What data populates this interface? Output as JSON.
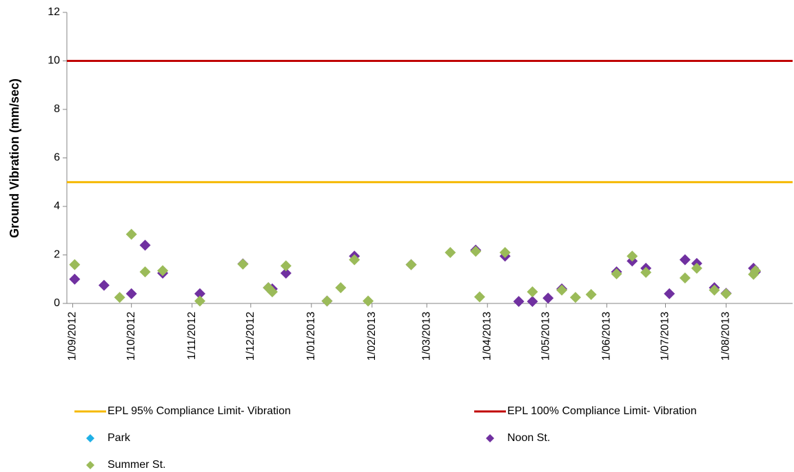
{
  "chart_data": {
    "type": "scatter",
    "y_label": "Ground Vibration (mm/sec)",
    "xlim": [
      "2012-08-29",
      "2013-09-04"
    ],
    "xticks": [
      {
        "value": "2012-09-01",
        "label": "1/09/2012"
      },
      {
        "value": "2012-10-01",
        "label": "1/10/2012"
      },
      {
        "value": "2012-11-01",
        "label": "1/11/2012"
      },
      {
        "value": "2012-12-01",
        "label": "1/12/2012"
      },
      {
        "value": "2013-01-01",
        "label": "1/01/2013"
      },
      {
        "value": "2013-02-01",
        "label": "1/02/2013"
      },
      {
        "value": "2013-03-01",
        "label": "1/03/2013"
      },
      {
        "value": "2013-04-01",
        "label": "1/04/2013"
      },
      {
        "value": "2013-05-01",
        "label": "1/05/2013"
      },
      {
        "value": "2013-06-01",
        "label": "1/06/2013"
      },
      {
        "value": "2013-07-01",
        "label": "1/07/2013"
      },
      {
        "value": "2013-08-01",
        "label": "1/08/2013"
      }
    ],
    "ylim": [
      0,
      12
    ],
    "yticks": [
      0,
      2,
      4,
      6,
      8,
      10,
      12
    ],
    "reference_lines": [
      {
        "name": "EPL 95% Compliance Limit- Vibration",
        "color": "#f5b800",
        "value": 5
      },
      {
        "name": "EPL 100% Compliance Limit- Vibration",
        "color": "#c00000",
        "value": 10
      }
    ],
    "series": [
      {
        "name": "Park",
        "color": "#1fb0e6",
        "x": [],
        "values": []
      },
      {
        "name": "Noon St.",
        "color": "#7030a0",
        "x": [
          "2012-09-02",
          "2012-09-17",
          "2012-10-01",
          "2012-10-08",
          "2012-10-17",
          "2012-11-05",
          "2012-11-27",
          "2012-12-10",
          "2012-12-12",
          "2012-12-19",
          "2013-01-09",
          "2013-01-23",
          "2013-02-21",
          "2013-03-26",
          "2013-04-10",
          "2013-04-17",
          "2013-04-24",
          "2013-05-02",
          "2013-05-09",
          "2013-06-06",
          "2013-06-14",
          "2013-06-21",
          "2013-07-03",
          "2013-07-11",
          "2013-07-17",
          "2013-07-26",
          "2013-08-01",
          "2013-08-15",
          "2013-08-16"
        ],
        "values": [
          1.0,
          0.75,
          0.4,
          2.4,
          1.25,
          0.4,
          1.63,
          0.65,
          0.6,
          1.25,
          0.1,
          1.95,
          1.6,
          2.2,
          1.95,
          0.08,
          0.08,
          0.22,
          0.6,
          1.3,
          1.75,
          1.45,
          0.4,
          1.8,
          1.65,
          0.65,
          0.42,
          1.45,
          1.3
        ]
      },
      {
        "name": "Summer St.",
        "color": "#9bbb59",
        "x": [
          "2012-09-02",
          "2012-09-25",
          "2012-10-01",
          "2012-10-08",
          "2012-10-17",
          "2012-11-05",
          "2012-11-27",
          "2012-12-10",
          "2012-12-12",
          "2012-12-19",
          "2013-01-09",
          "2013-01-16",
          "2013-01-23",
          "2013-01-30",
          "2013-02-21",
          "2013-03-13",
          "2013-03-26",
          "2013-03-28",
          "2013-04-10",
          "2013-04-24",
          "2013-05-09",
          "2013-05-16",
          "2013-05-24",
          "2013-06-06",
          "2013-06-14",
          "2013-06-21",
          "2013-07-11",
          "2013-07-17",
          "2013-07-26",
          "2013-08-01",
          "2013-08-15",
          "2013-08-16"
        ],
        "values": [
          1.6,
          0.25,
          2.85,
          1.3,
          1.35,
          0.1,
          1.62,
          0.65,
          0.48,
          1.55,
          0.1,
          0.65,
          1.8,
          0.1,
          1.6,
          2.1,
          2.15,
          0.27,
          2.1,
          0.48,
          0.55,
          0.25,
          0.37,
          1.22,
          1.95,
          1.28,
          1.05,
          1.45,
          0.55,
          0.4,
          1.2,
          1.35
        ]
      }
    ]
  }
}
